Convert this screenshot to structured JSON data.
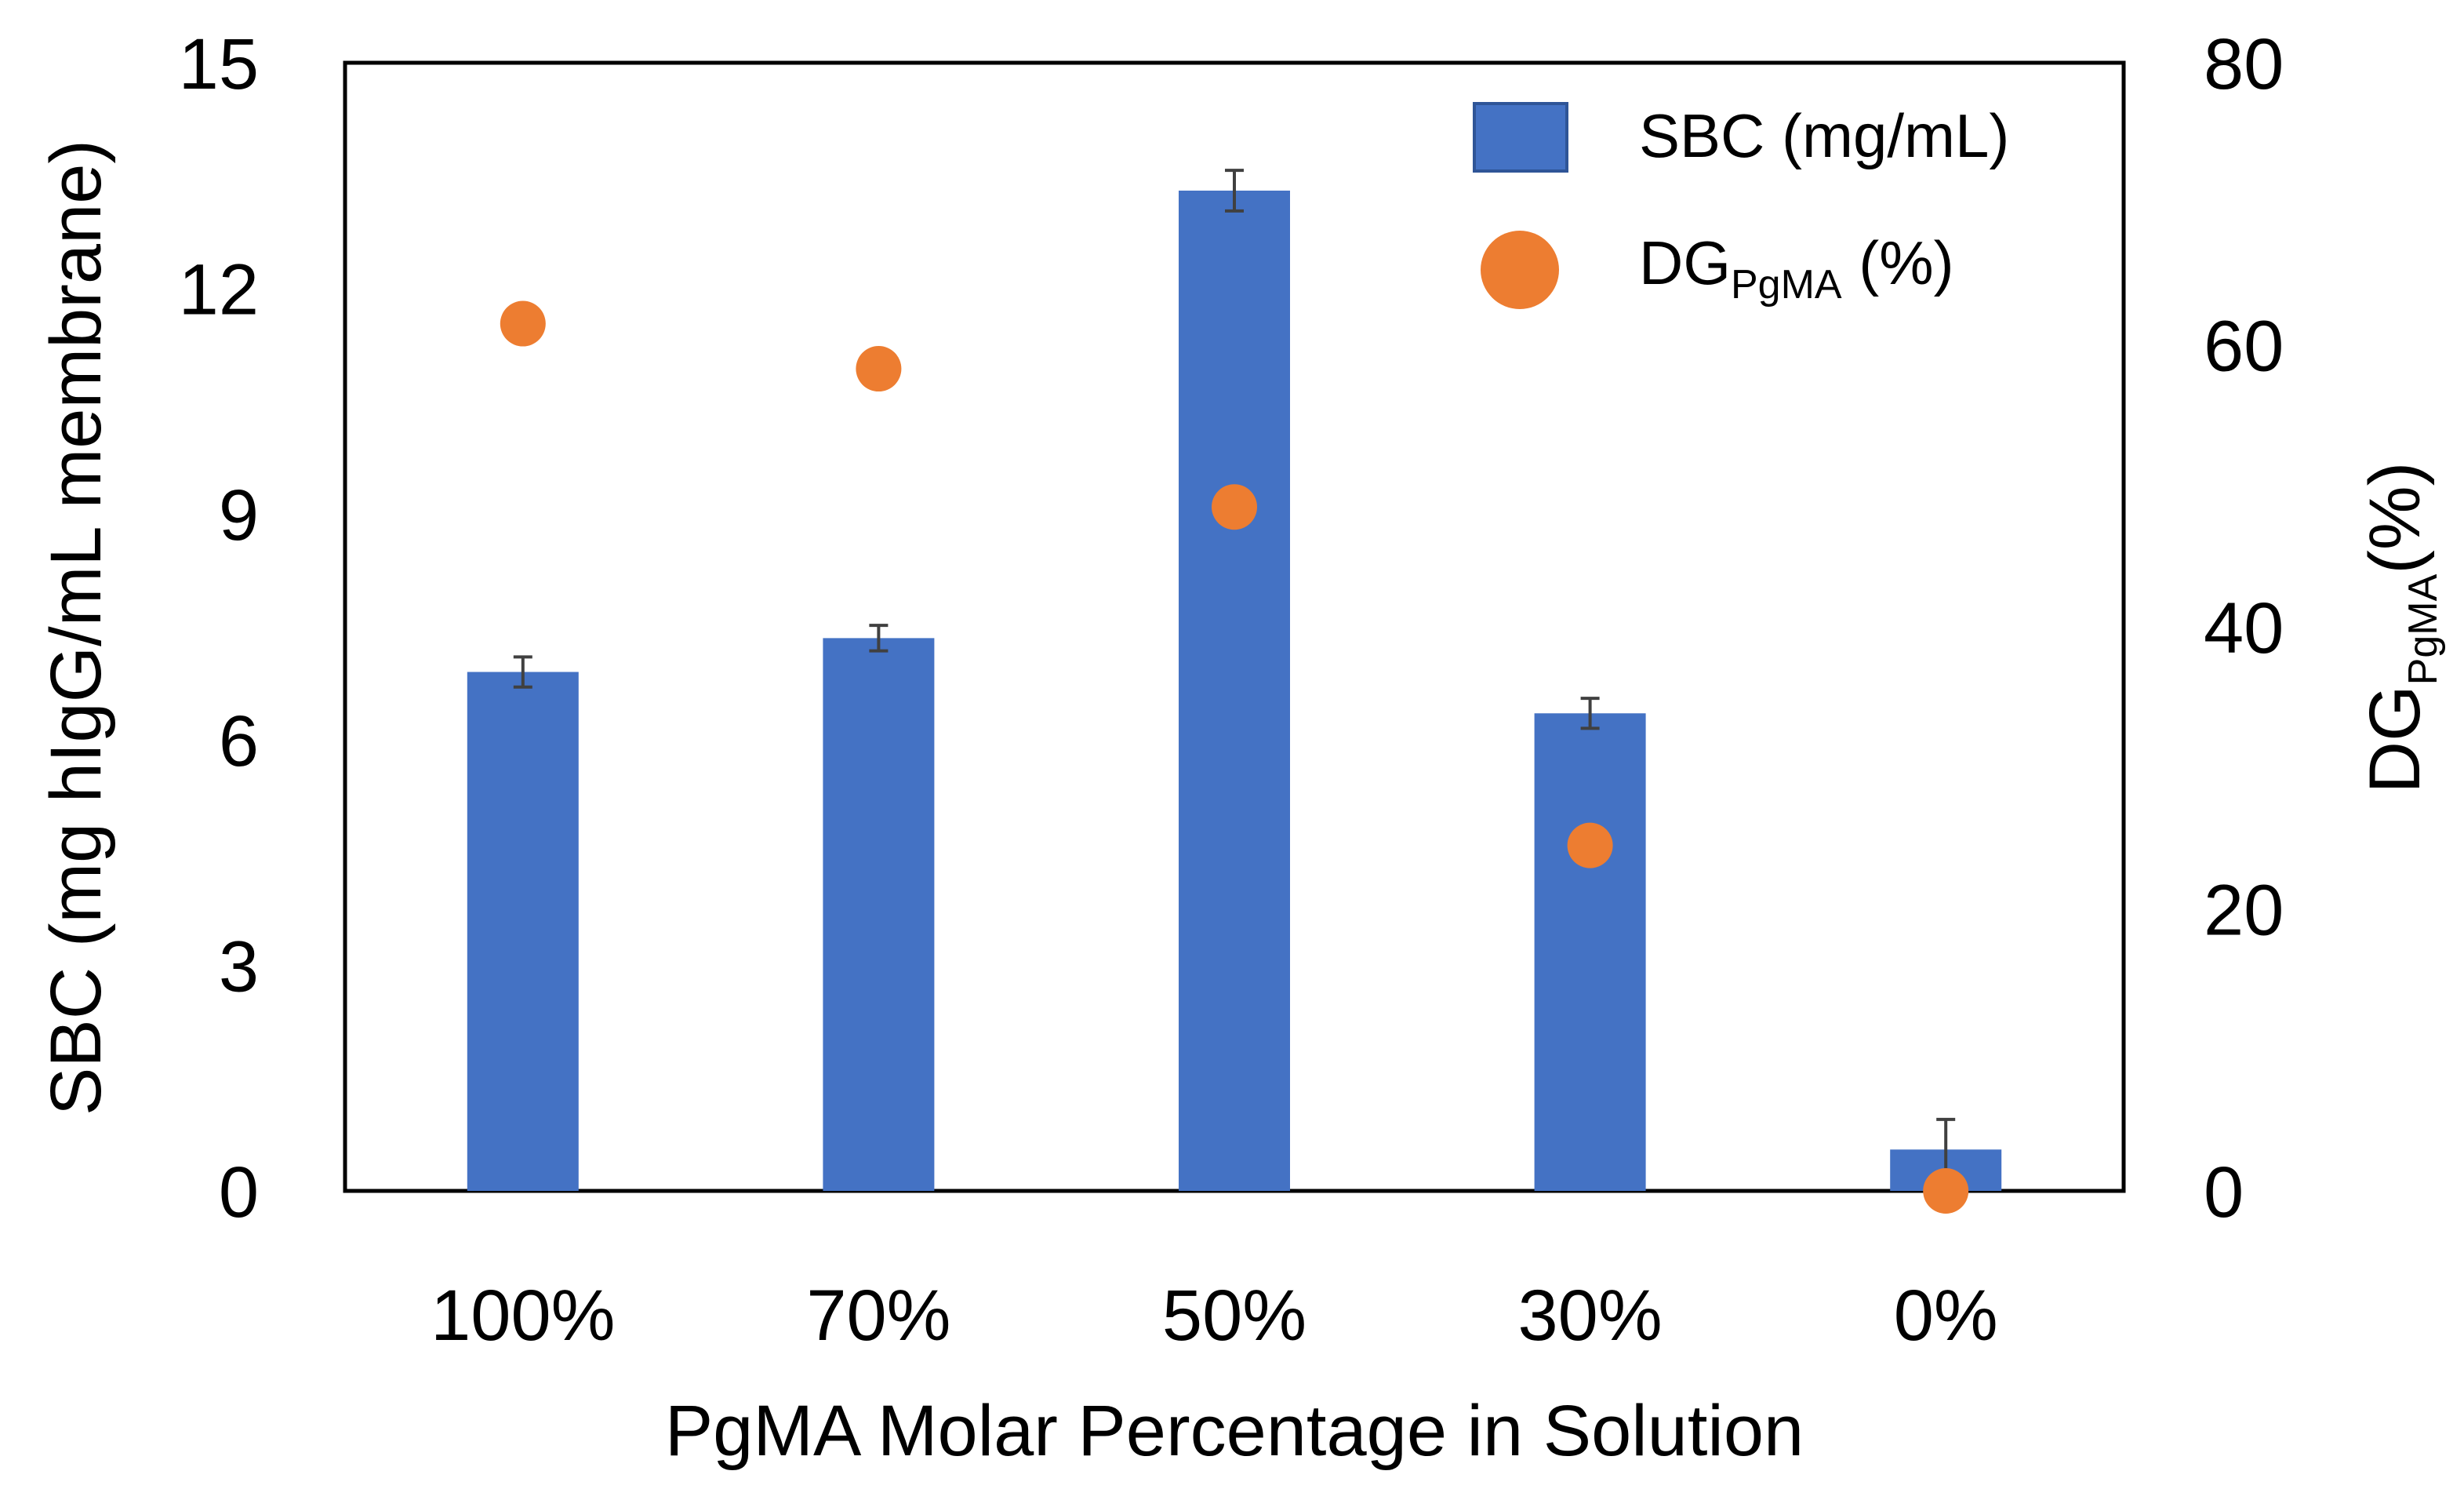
{
  "chart_data": {
    "type": "bar",
    "title": "",
    "xlabel": "PgMA Molar Percentage in Solution",
    "ylabel": "SBC (mg hIgG/mL membrane)",
    "y2label": {
      "main": "DG",
      "sub": "PgMA",
      "suffix": "(%)"
    },
    "categories": [
      "100%",
      "70%",
      "50%",
      "30%",
      "0%"
    ],
    "ylim": [
      0,
      15
    ],
    "yticks": [
      0,
      3,
      6,
      9,
      12,
      15
    ],
    "y2lim": [
      0,
      80
    ],
    "y2ticks": [
      0,
      20,
      40,
      60,
      80
    ],
    "grid": false,
    "legend_position": "top-right",
    "series": [
      {
        "name": "SBC (mg/mL)",
        "kind": "bar",
        "axis": "left",
        "values": [
          6.9,
          7.35,
          13.3,
          6.35,
          0.55
        ],
        "errors": [
          0.2,
          0.17,
          0.27,
          0.2,
          0.4
        ]
      },
      {
        "name": "DG_PgMA (%)",
        "legend": {
          "main": "DG",
          "sub": "PgMA",
          "suffix": " (%)"
        },
        "kind": "scatter",
        "axis": "right",
        "values": [
          61.5,
          58.3,
          48.5,
          24.5,
          0.0
        ]
      }
    ],
    "colors": {
      "bar": "#4472C4",
      "marker": "#ED7D31",
      "errorbar": "#404040",
      "axis": "#000000"
    }
  }
}
